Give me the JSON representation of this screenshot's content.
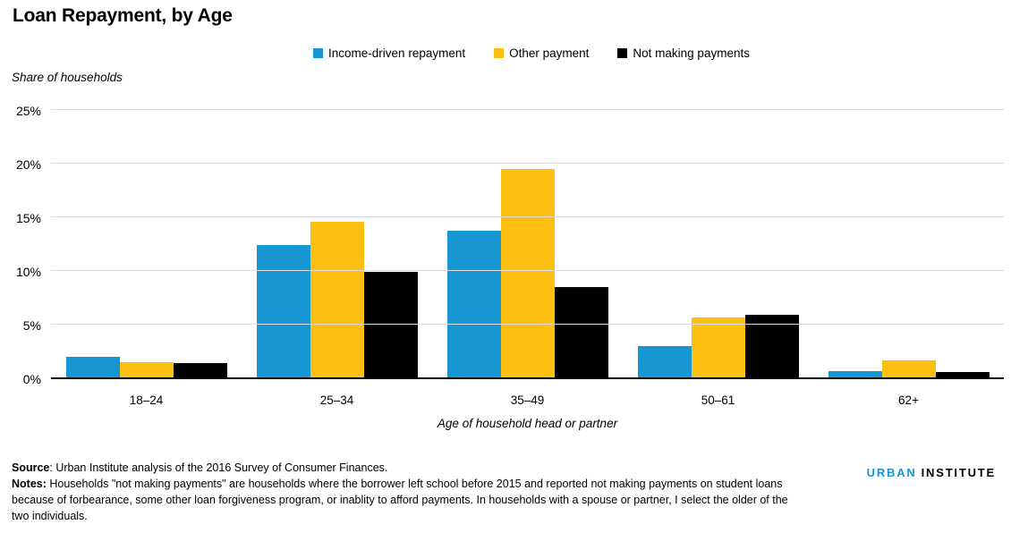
{
  "title": "Loan Repayment, by Age",
  "y_axis_title": "Share of households",
  "x_axis_title": "Age of household head or partner",
  "colors": {
    "blue": "#1696d2",
    "yellow": "#fdbf11",
    "black": "#000000",
    "gridline": "#dcdcdc"
  },
  "chart_data": {
    "type": "bar",
    "title": "Loan Repayment, by Age",
    "categories": [
      "18–24",
      "25–34",
      "35–49",
      "50–61",
      "62+"
    ],
    "series": [
      {
        "name": "Income-driven repayment",
        "color": "#1696d2",
        "values": [
          1.9,
          12.3,
          13.7,
          2.9,
          0.6
        ]
      },
      {
        "name": "Other payment",
        "color": "#fdbf11",
        "values": [
          1.4,
          14.5,
          19.4,
          5.6,
          1.6
        ]
      },
      {
        "name": "Not making payments",
        "color": "#000000",
        "values": [
          1.3,
          9.8,
          8.4,
          5.8,
          0.5
        ]
      }
    ],
    "xlabel": "Age of household head or partner",
    "ylabel": "Share of households",
    "ylim": [
      0,
      25
    ],
    "y_ticks": [
      {
        "value": 0,
        "label": "0%"
      },
      {
        "value": 5,
        "label": "5%"
      },
      {
        "value": 10,
        "label": "10%"
      },
      {
        "value": 15,
        "label": "15%"
      },
      {
        "value": 20,
        "label": "20%"
      },
      {
        "value": 25,
        "label": "25%"
      }
    ],
    "grid": true,
    "legend_position": "top"
  },
  "footer": {
    "source_label": "Source",
    "source_text": ": Urban Institute analysis of the 2016 Survey of Consumer Finances.",
    "notes_label": "Notes:",
    "notes_text": " Households \"not making payments\" are households where the borrower left school before 2015 and reported not making payments on student loans because of forbearance, some other loan forgiveness program, or inablity to afford payments. In households with a spouse or partner, I select the older of the two individuals."
  },
  "logo": {
    "urban": "URBAN",
    "institute": "INSTITUTE"
  }
}
